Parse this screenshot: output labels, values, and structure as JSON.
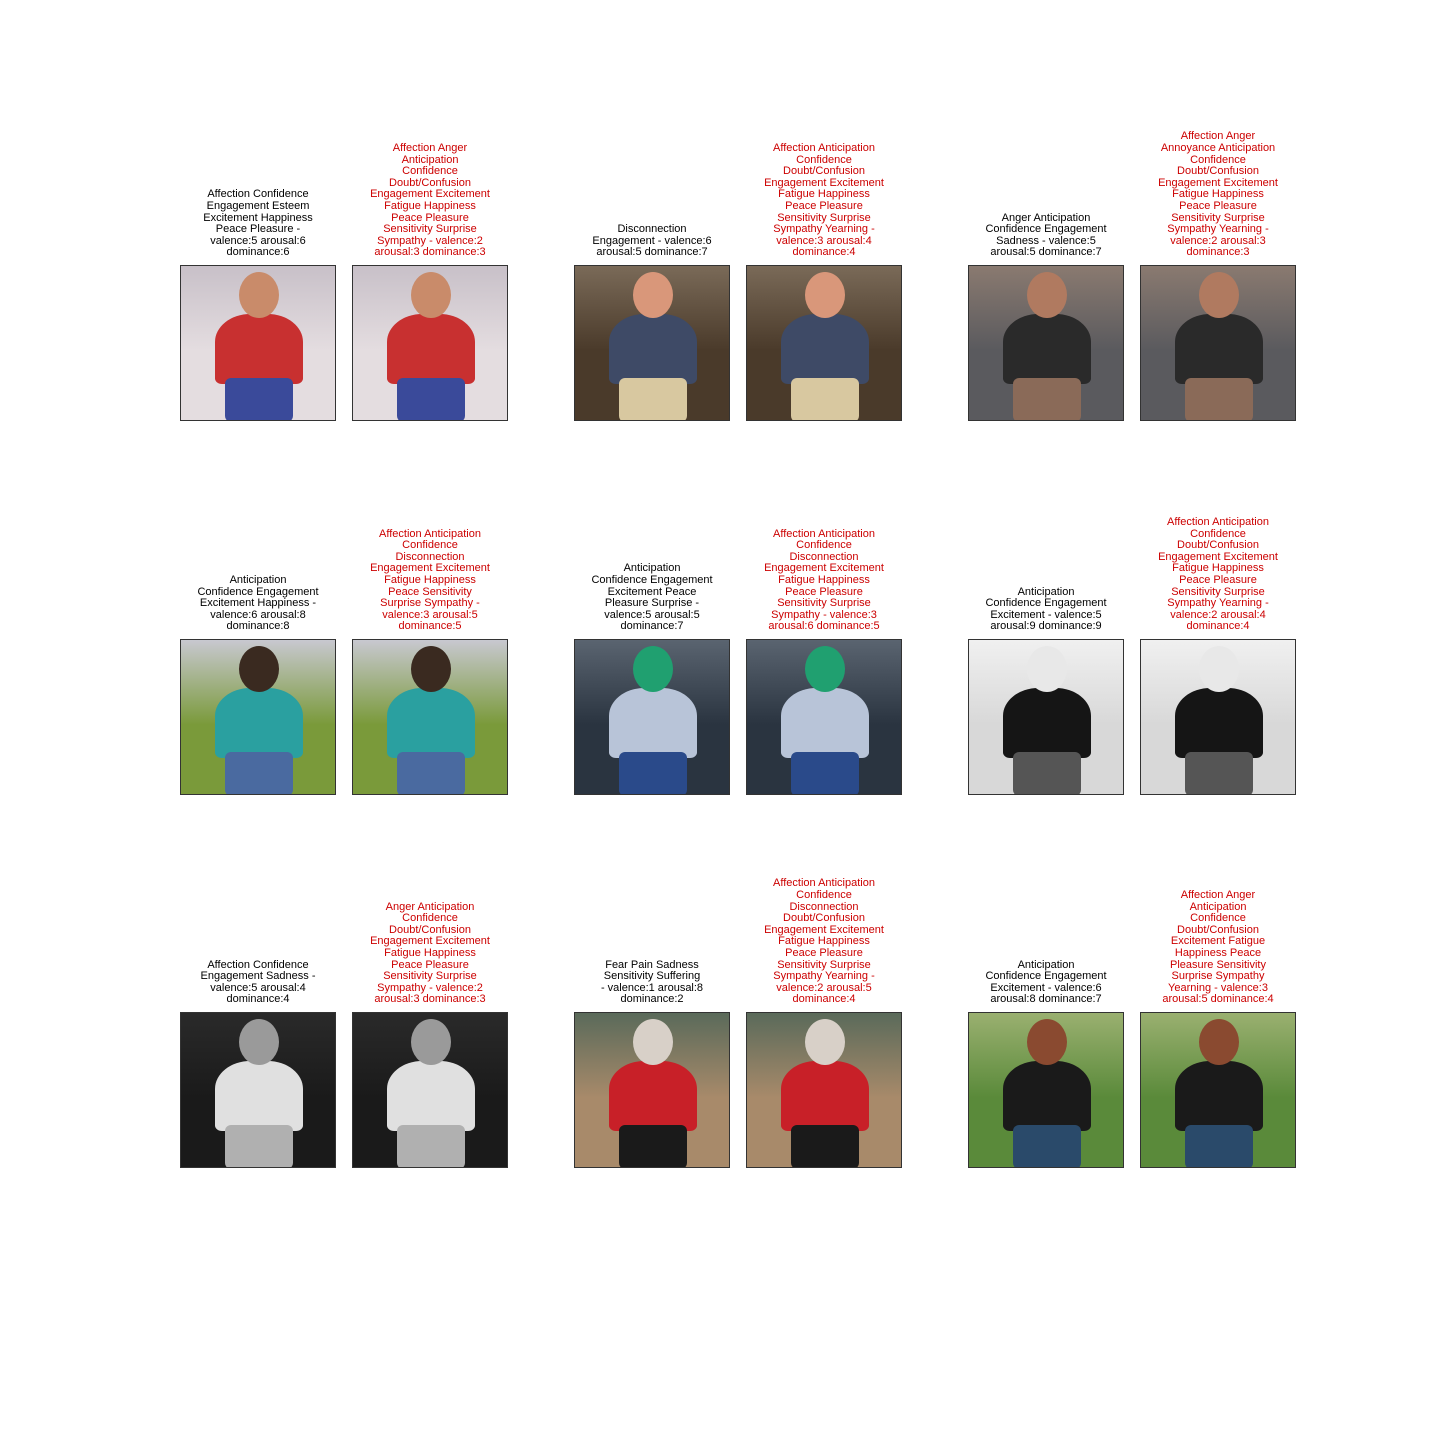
{
  "panels": [
    {
      "row": 0,
      "col": 0,
      "gt": "Affection Confidence\nEngagement Esteem\nExcitement Happiness\nPeace Pleasure -\nvalence:5 arousal:6\ndominance:6",
      "pred": "Affection Anger\nAnticipation\nConfidence\nDoubt/Confusion\nEngagement Excitement\nFatigue Happiness\nPeace Pleasure\nSensitivity Surprise\nSympathy - valence:2\narousal:3 dominance:3",
      "image": {
        "bg": "#e4dde0",
        "top": "#c8c0c8",
        "fig": "#c83030",
        "accent": "#3a4a9a",
        "head": "#c98b6a"
      }
    },
    {
      "row": 0,
      "col": 1,
      "gt": "Disconnection\nEngagement - valence:6\narousal:5 dominance:7",
      "pred": "Affection Anticipation\nConfidence\nDoubt/Confusion\nEngagement Excitement\nFatigue Happiness\nPeace Pleasure\nSensitivity Surprise\nSympathy Yearning -\nvalence:3 arousal:4\ndominance:4",
      "image": {
        "bg": "#4a3a2a",
        "top": "#7a6a58",
        "fig": "#3e4a66",
        "accent": "#d8c8a0",
        "head": "#d9977a"
      }
    },
    {
      "row": 0,
      "col": 2,
      "gt": "Anger Anticipation\nConfidence Engagement\nSadness - valence:5\narousal:5 dominance:7",
      "pred": "Affection Anger\nAnnoyance Anticipation\nConfidence\nDoubt/Confusion\nEngagement Excitement\nFatigue Happiness\nPeace Pleasure\nSensitivity Surprise\nSympathy Yearning -\nvalence:2 arousal:3\ndominance:3",
      "image": {
        "bg": "#5a5a5e",
        "top": "#8a7a70",
        "fig": "#2a2a2a",
        "accent": "#8a6a58",
        "head": "#b07a60"
      }
    },
    {
      "row": 1,
      "col": 0,
      "gt": "Anticipation\nConfidence Engagement\nExcitement Happiness -\nvalence:6 arousal:8\ndominance:8",
      "pred": "Affection Anticipation\nConfidence\nDisconnection\nEngagement Excitement\nFatigue Happiness\nPeace Sensitivity\nSurprise Sympathy -\nvalence:3 arousal:5\ndominance:5",
      "image": {
        "bg": "#7a9a3a",
        "top": "#c8c8d0",
        "fig": "#2aa0a0",
        "accent": "#4a6aa0",
        "head": "#3a2a20"
      }
    },
    {
      "row": 1,
      "col": 1,
      "gt": "Anticipation\nConfidence Engagement\nExcitement Peace\nPleasure Surprise -\nvalence:5 arousal:5\ndominance:7",
      "pred": "Affection Anticipation\nConfidence\nDisconnection\nEngagement Excitement\nFatigue Happiness\nPeace Pleasure\nSensitivity Surprise\nSympathy - valence:3\narousal:6 dominance:5",
      "image": {
        "bg": "#2a3440",
        "top": "#5a6470",
        "fig": "#b8c4d8",
        "accent": "#2a4a8a",
        "head": "#20a070"
      }
    },
    {
      "row": 1,
      "col": 2,
      "gt": "Anticipation\nConfidence Engagement\nExcitement - valence:5\narousal:9 dominance:9",
      "pred": "Affection Anticipation\nConfidence\nDoubt/Confusion\nEngagement Excitement\nFatigue Happiness\nPeace Pleasure\nSensitivity Surprise\nSympathy Yearning -\nvalence:2 arousal:4\ndominance:4",
      "image": {
        "bg": "#d8d8d8",
        "top": "#f0f0f0",
        "fig": "#151515",
        "accent": "#555555",
        "head": "#e8e8e8"
      }
    },
    {
      "row": 2,
      "col": 0,
      "gt": "Affection Confidence\nEngagement Sadness -\nvalence:5 arousal:4\ndominance:4",
      "pred": "Anger Anticipation\nConfidence\nDoubt/Confusion\nEngagement Excitement\nFatigue Happiness\nPeace Pleasure\nSensitivity Surprise\nSympathy - valence:2\narousal:3 dominance:3",
      "image": {
        "bg": "#1a1a1a",
        "top": "#2a2a2a",
        "fig": "#e0e0e0",
        "accent": "#b0b0b0",
        "head": "#9a9a9a"
      }
    },
    {
      "row": 2,
      "col": 1,
      "gt": "Fear Pain Sadness\nSensitivity Suffering\n- valence:1 arousal:8\ndominance:2",
      "pred": "Affection Anticipation\nConfidence\nDisconnection\nDoubt/Confusion\nEngagement Excitement\nFatigue Happiness\nPeace Pleasure\nSensitivity Surprise\nSympathy Yearning -\nvalence:2 arousal:5\ndominance:4",
      "image": {
        "bg": "#a88a6a",
        "top": "#5a6a5a",
        "fig": "#c82028",
        "accent": "#1a1a1a",
        "head": "#d8d0c8"
      }
    },
    {
      "row": 2,
      "col": 2,
      "gt": "Anticipation\nConfidence Engagement\nExcitement - valence:6\narousal:8 dominance:7",
      "pred": "Affection Anger\nAnticipation\nConfidence\nDoubt/Confusion\nExcitement Fatigue\nHappiness Peace\nPleasure Sensitivity\nSurprise Sympathy\nYearning - valence:3\narousal:5 dominance:4",
      "image": {
        "bg": "#5a8a3a",
        "top": "#9ab070",
        "fig": "#1a1a1a",
        "accent": "#2a4a6a",
        "head": "#8a4a30"
      }
    }
  ]
}
